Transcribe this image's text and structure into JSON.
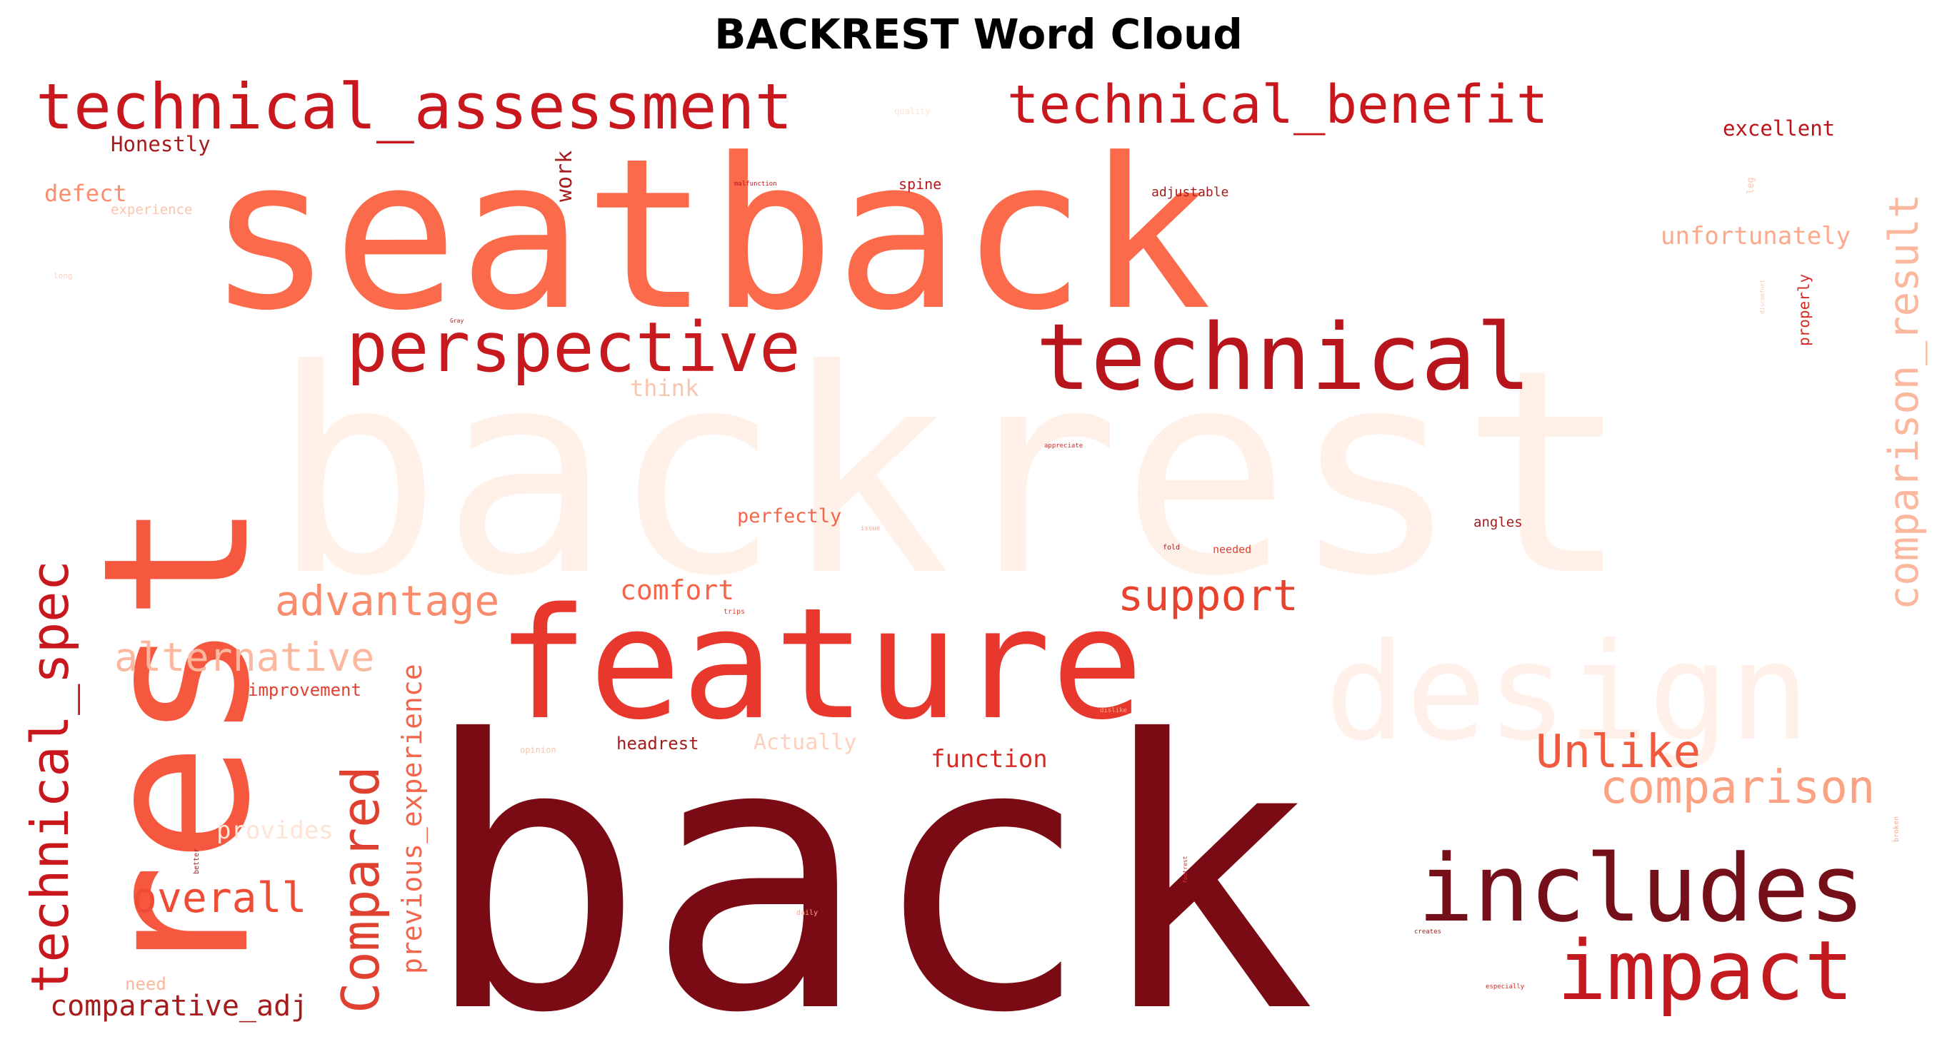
{
  "chart_data": {
    "type": "wordcloud",
    "title": "BACKREST Word Cloud",
    "colormap": "Reds",
    "words": [
      {
        "text": "back",
        "color": "#7a0a14"
      },
      {
        "text": "backrest",
        "color": "#fff0e8"
      },
      {
        "text": "seatback",
        "color": "#fb6a4a"
      },
      {
        "text": "rest",
        "color": "#f5573f"
      },
      {
        "text": "feature",
        "color": "#e8372c"
      },
      {
        "text": "design",
        "color": "#fff1ea"
      },
      {
        "text": "technical_assessment",
        "color": "#c8181e"
      },
      {
        "text": "technical_benefit",
        "color": "#c8181e"
      },
      {
        "text": "technical",
        "color": "#b8141b"
      },
      {
        "text": "perspective",
        "color": "#c71a1f"
      },
      {
        "text": "includes",
        "color": "#75101a"
      },
      {
        "text": "impact",
        "color": "#c21a1e"
      },
      {
        "text": "technical_spec",
        "color": "#c8181e"
      },
      {
        "text": "comparison_result",
        "color": "#fcb89e"
      },
      {
        "text": "Unlike",
        "color": "#f05a3f"
      },
      {
        "text": "comparison",
        "color": "#fca182"
      },
      {
        "text": "Compared",
        "color": "#e0402f"
      },
      {
        "text": "support",
        "color": "#e8432f"
      },
      {
        "text": "advantage",
        "color": "#f88c6c"
      },
      {
        "text": "alternative",
        "color": "#fcb89e"
      },
      {
        "text": "overall",
        "color": "#ef4c36"
      },
      {
        "text": "previous_experience",
        "color": "#f4664c"
      },
      {
        "text": "comparative_adj",
        "color": "#a41c1c"
      },
      {
        "text": "comfort",
        "color": "#f4664c"
      },
      {
        "text": "function",
        "color": "#d42b25"
      },
      {
        "text": "unfortunately",
        "color": "#fca88a"
      },
      {
        "text": "excellent",
        "color": "#b8141b"
      },
      {
        "text": "work",
        "color": "#a41c1c"
      },
      {
        "text": "Honestly",
        "color": "#a41c1c"
      },
      {
        "text": "defect",
        "color": "#fa8e6e"
      },
      {
        "text": "think",
        "color": "#fcc4ad"
      },
      {
        "text": "perfectly",
        "color": "#f4664c"
      },
      {
        "text": "headrest",
        "color": "#a41c1c"
      },
      {
        "text": "Actually",
        "color": "#fcd1bd"
      },
      {
        "text": "improvement",
        "color": "#e0402f"
      },
      {
        "text": "provides",
        "color": "#fee3d6"
      },
      {
        "text": "need",
        "color": "#fcb89e"
      },
      {
        "text": "properly",
        "color": "#d42b25"
      },
      {
        "text": "spine",
        "color": "#b8141b"
      },
      {
        "text": "adjustable",
        "color": "#a41c1c"
      },
      {
        "text": "angles",
        "color": "#a41c1c"
      },
      {
        "text": "needed",
        "color": "#e0402f"
      },
      {
        "text": "experience",
        "color": "#fcc4ad"
      },
      {
        "text": "quality",
        "color": "#fee3d6"
      },
      {
        "text": "malfunction",
        "color": "#b8141b"
      },
      {
        "text": "leg",
        "color": "#fcc4ad"
      },
      {
        "text": "long",
        "color": "#fcd1bd"
      },
      {
        "text": "Gray",
        "color": "#a41c1c"
      },
      {
        "text": "appreciate",
        "color": "#d42b25"
      },
      {
        "text": "issue",
        "color": "#fca88a"
      },
      {
        "text": "fold",
        "color": "#a41c1c"
      },
      {
        "text": "trips",
        "color": "#e0402f"
      },
      {
        "text": "dislike",
        "color": "#fca88a"
      },
      {
        "text": "opinion",
        "color": "#fcc4ad"
      },
      {
        "text": "better",
        "color": "#a41c1c"
      },
      {
        "text": "daily",
        "color": "#fca88a"
      },
      {
        "text": "footrest",
        "color": "#d42b25"
      },
      {
        "text": "creates",
        "color": "#a41c1c"
      },
      {
        "text": "especially",
        "color": "#d42b25"
      },
      {
        "text": "broken",
        "color": "#fca88a"
      },
      {
        "text": "discomfort",
        "color": "#fcc4ad"
      }
    ]
  }
}
